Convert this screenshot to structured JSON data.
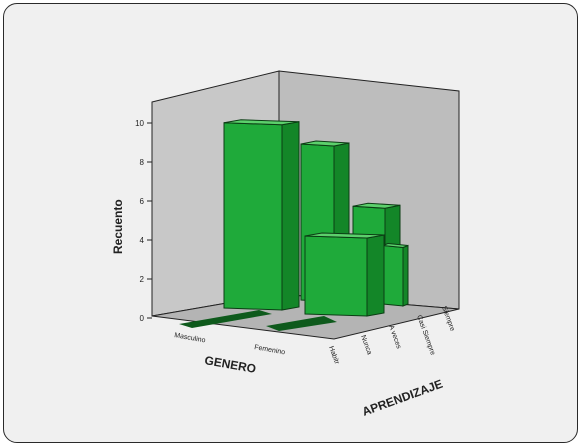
{
  "chart_data": {
    "type": "bar",
    "title": "",
    "xlabel": "GENERO",
    "ylabel": "Recuento",
    "zlabel": "APRENDIZAJE",
    "categories": [
      "Masculino",
      "Femenino"
    ],
    "depth_categories": [
      "Nunca",
      "A veces",
      "Casi Siempre",
      "Siempre"
    ],
    "series": [
      {
        "name": "Nunca",
        "values": [
          0,
          9.5
        ]
      },
      {
        "name": "A veces",
        "values": [
          0,
          8
        ]
      },
      {
        "name": "Casi Siempre",
        "values": [
          0,
          4
        ]
      },
      {
        "name": "Siempre",
        "values": [
          0,
          4.5
        ]
      }
    ],
    "extra_bars": [
      {
        "category": "Femenino",
        "depth": "A veces",
        "value": 3
      }
    ],
    "ylim": [
      0,
      10
    ],
    "yticks": [
      0,
      2,
      4,
      6,
      8,
      10
    ],
    "depth_tick_labels": [
      "Habitr",
      "Nunca",
      "A veces",
      "Casi Siempre",
      "Siempre"
    ],
    "grid": false,
    "colors": {
      "bar": "#1faa3a",
      "bar_side": "#138628",
      "bar_top": "#5cd06c",
      "walls": "#c8c8c8",
      "floor": "#b4b4b4"
    }
  }
}
